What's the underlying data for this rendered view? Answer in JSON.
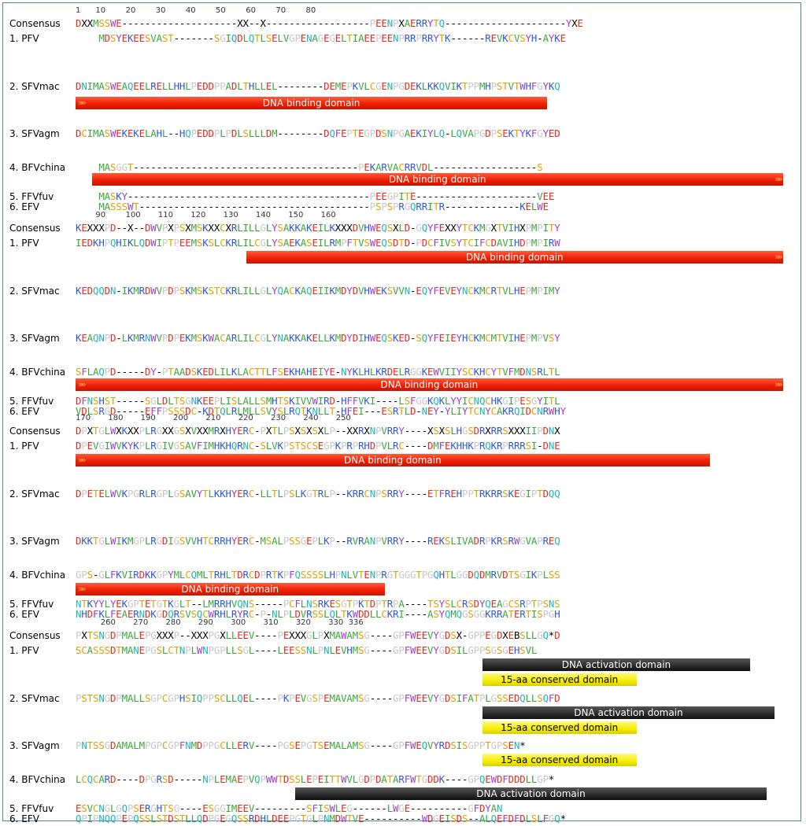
{
  "diagram": {
    "labels": {
      "consensus": "Consensus",
      "pfv": "1. PFV",
      "sfvmac": "2. SFVmac",
      "sfvagm": "3. SFVagm",
      "bfvchina": "4. BFVchina",
      "ffvfuv": "5. FFVfuv",
      "efv": "6. EFV"
    },
    "features": {
      "dna_binding": "DNA binding domain",
      "dna_activation": "DNA activation domain",
      "conserved_15aa": "15-aa conserved domain"
    },
    "colors": {
      "D": "#e8291a",
      "E": "#e8291a",
      "K": "#2f57d4",
      "R": "#2f57d4",
      "H": "#2f57d4",
      "N": "#22b5b5",
      "Q": "#22b5b5",
      "S": "#e0a000",
      "T": "#e0a000",
      "A": "#3aa63a",
      "I": "#3aa63a",
      "L": "#3aa63a",
      "M": "#3aa63a",
      "V": "#3aa63a",
      "F": "#9b40c8",
      "W": "#9b40c8",
      "Y": "#9b40c8",
      "C": "#e8a000",
      "G": "#c7c7c7",
      "P": "#c7c7c7",
      "X": "#000000",
      "*": "#000000",
      "-": "#000000"
    },
    "blocks": [
      {
        "ruler": "1      10        20        30        40        50        60        70        80",
        "rows": [
          {
            "label": "consensus",
            "seq": "DXXMSSWE--------------------XX--X------------------PEENPXAERRYTQ---------------------YXE"
          },
          {
            "label": "pfv",
            "seq": "    MDSYEKEESVAST-------SGIQDLQTLSELVGPENAGEGELTIAEEPEENPRRPRRYTK------REVKCVSYH-AYKE"
          },
          {
            "label": "sfvmac",
            "seq": "DNIMASWEAQEELRELLHHLPEDDPPADLTHLLEL--------DEMEPKVLCGENPGDEKLKKQVIKTPPMHPSTVTWHFGYKQ"
          },
          {
            "label": "sfvagm",
            "seq": "DCIMASWEKEKELAHL--HQPEDDPLPDLSLLLDM--------DQFEPTEGPDSNPGAEKIYLQ-LQVAPGDPSEKTYKFGYED"
          },
          {
            "label": "bfvchina",
            "seq": "    MASGGT---------------------------------------PEKARVACRRVDL------------------S"
          },
          {
            "label": "ffvfuv",
            "seq": "    MASKY------------------------------------------PEEGPITE---------------------VEE"
          },
          {
            "label": "efv",
            "seq": "    MASSSWT----------------------------------------PSPSPRGQRRITR-------------KELWE"
          }
        ]
      },
      {
        "ruler": "        90        100       110       120       130       140       150       160",
        "rows": [
          {
            "label": "consensus",
            "seq": "KEXXXPD--X--DWVPXPSXMSKXXCXRLILLGLYSAKKAKEILKXXXDVHWEQSXLD-GQYFEXXYTCKMGXTVIHXPMPITY"
          },
          {
            "label": "pfv",
            "seq": "IEDKHPQHIKLQDWIPTPEEMSKSLCKRLILCGLYSAEKASEILRMPFTVSWEQSDTD-PDCFIVSYTCIFCDAVIHDPMPIRW"
          },
          {
            "label": "sfvmac",
            "seq": "KEDQQDN-IKMRDWVPDPSKMSKSTCKRLILLGLYQACKAQEIIKMDYDVHWEKSVVN-EQYFEVEYNCKMCRTVLHEPMPIMY"
          },
          {
            "label": "sfvagm",
            "seq": "KEAQNPD-LKMRNWVPDPEKMSKWACARLILCGLYNAKKAKELLKMDYDIHWEQSKED-SQYFEIEYHCKMCMTVIHEPMPVSY"
          },
          {
            "label": "bfvchina",
            "seq": "SFLAQPD-----DY-PTAADSKEDLILKLACTTLFSEKHAHEIYE-NYKLHLKRDELRGGKEWVIIYSCKHCYTVFMDNSRLTL"
          },
          {
            "label": "ffvfuv",
            "seq": "DFNSHST-----SGLDLTSGNKEEPLISLALLSMHTSKIVVWIRD-HFFVKI----LSFGGKQKLYYICNQCHKGIPESGYITL"
          },
          {
            "label": "efv",
            "seq": "VDLSRGD-----EFFPSSSDC-KDTQLRLMLLSVYSLRQTKNLLT-HFEI---ESRTLD-NEY-YLIYTCNYCAKRQIDCNRWHY"
          }
        ]
      },
      {
        "ruler": "170       180       190       200       210       220       230       240       250",
        "rows": [
          {
            "label": "consensus",
            "seq": "DPXTGLWXKXXPLRGXXGSXVXXMRXHYERC-PXTLPSXSXSXLP--XXRXNPVRRY----XSXSLHGSDRXRRSXXXIIPDNX"
          },
          {
            "label": "pfv",
            "seq": "DPEVGIWVKYKPLRGIVGSAVFIMHKHQRNC-SLVKPSTSCSEGPKPRPRHDPVLRC----DMFEKHHKPRQKRPRRRSI-DNE"
          },
          {
            "label": "sfvmac",
            "seq": "DPETELWVKPGRLRGPLGSAVYTLKKHYERC-LLTLPSLKGTRLP--KRRCNPSRRY----ETFREHPPTRKRRSKEGIPTDQQ"
          },
          {
            "label": "sfvagm",
            "seq": "DKKTGLWIKMGPLRGDIGSVVHTCRRHYERC-MSALPSSGEPLKP--RVRANPVRRY----REKSLIVADRPKRSRWGVAPREQ"
          },
          {
            "label": "bfvchina",
            "seq": "GPS-GLFKVIRDKKGPYMLCQMLTRHLTDRCDPRTKPFQSSSSLHPNLVTENPRGTGGGTPGQHTLGGDQDMRVDTSGIKPLSS"
          },
          {
            "label": "ffvfuv",
            "seq": "NTKYYLYEKGPTETGTKGLT--LMRRHVQNS-----PCFLNSRKESGTPKTDPTRPA----TSYSLCRSDYQEAGCSRPTPSNS"
          },
          {
            "label": "efv",
            "seq": "NHDFKLFEAERNDKGDQRSVSQCWRHLRYRC-P-NLPLDVRSSLQLTKWDDLLCKRI----ASYQMQGSGGKRRATERTISPGH"
          }
        ]
      },
      {
        "ruler": "          260       270       280       290       300       310       320       330  336",
        "rows": [
          {
            "label": "consensus",
            "seq": "PXTSNGDPMALEPGXXXP--XXXPGXLLEEV----PEXXXGLPXMAWAMSG----GPFWEEVYGDSX-GPPEGDXEBSLLGQ*D"
          },
          {
            "label": "pfv",
            "seq": "SCASSSDTMANEPGSLCTNPLWNPGPLLSGL----LEESSNLPNLEVHMSG----GPFWEEVYGDSILGPPSGSGEHSVL"
          },
          {
            "label": "sfvmac",
            "seq": "PSTSNGDPMALLSGPCGPHSIQPPSCLLQEL----PKPEVGSPEMAVAMSG----GPFWEEVYGDSIFATPLGSSEDQLLSQFD"
          },
          {
            "label": "sfvagm",
            "seq": "PNTSSGDAMALMPGPCGPFNMDPPGCLLERV----PGSEPGTSEMALAMSG----GPFWEQVYRDSISGPPTGPSEN*"
          },
          {
            "label": "bfvchina",
            "seq": "LCQCARD----DPGRSD-----NPLEMAEPVQPWWTDSSLEPEITTWVLGDPDATARFWTGDDK----GPQEWDFDDDLLGP*"
          },
          {
            "label": "ffvfuv",
            "seq": "ESVCNGLGQPSERGHTSG----ESGGIMEEV---------SFISWLEG------LWGE----------GFDYAN"
          },
          {
            "label": "efv",
            "seq": "QPIPNQQPEPQSSLSTDSTLLQDPGEGQSSRDHLDEEPGTGLPNMDWTVE----------WDGEISDS--ALQEFDFDLSLFGQ*"
          }
        ]
      }
    ]
  }
}
